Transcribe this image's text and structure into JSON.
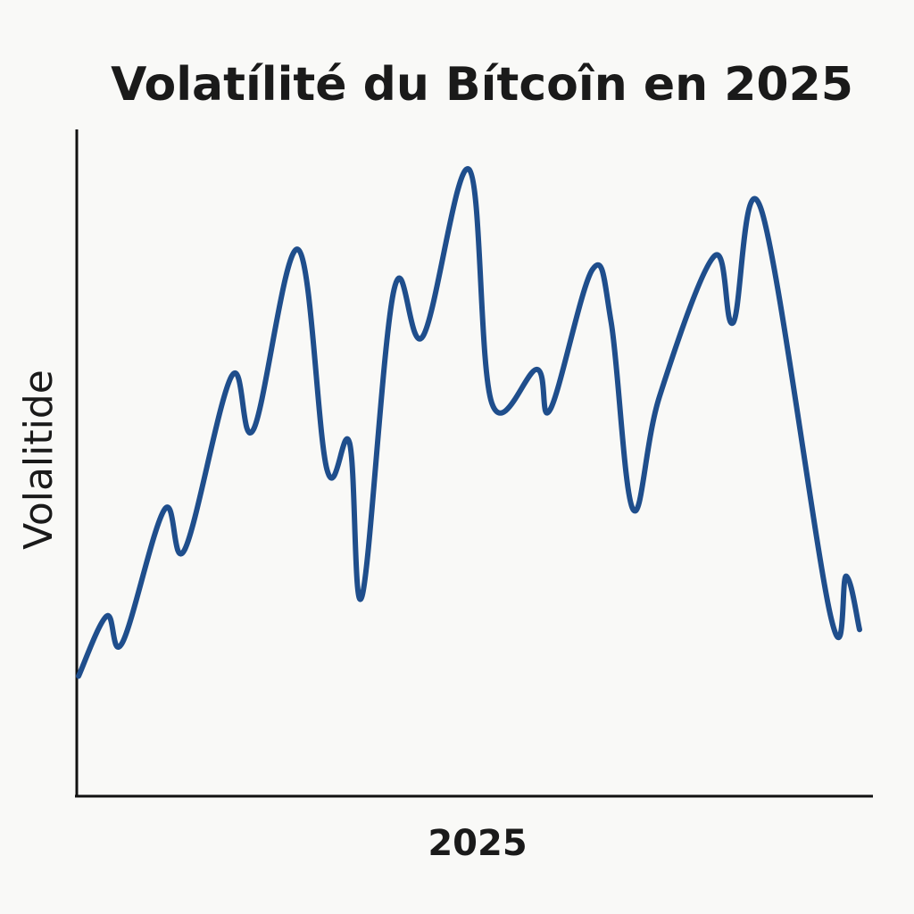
{
  "chart_data": {
    "type": "line",
    "title": "Volatílité du Bítcoîn en 2025",
    "xlabel": "2025",
    "ylabel": "Volalitide",
    "x": [
      0.0,
      0.036,
      0.056,
      0.11,
      0.136,
      0.196,
      0.224,
      0.281,
      0.318,
      0.347,
      0.363,
      0.404,
      0.441,
      0.5,
      0.529,
      0.587,
      0.604,
      0.658,
      0.682,
      0.71,
      0.744,
      0.814,
      0.838,
      0.874,
      0.963,
      0.983,
      1.0
    ],
    "series": [
      {
        "color": "#1f4e8c",
        "values": [
          18,
          27,
          23,
          43,
          37,
          63,
          55,
          82,
          49,
          53,
          30,
          76,
          69,
          94,
          59,
          64,
          58,
          79,
          71,
          43,
          60,
          81,
          71,
          88,
          27,
          33,
          25
        ]
      }
    ],
    "xlim": [
      0,
      1
    ],
    "ylim": [
      0,
      100
    ],
    "grid": false,
    "legend": "none"
  }
}
